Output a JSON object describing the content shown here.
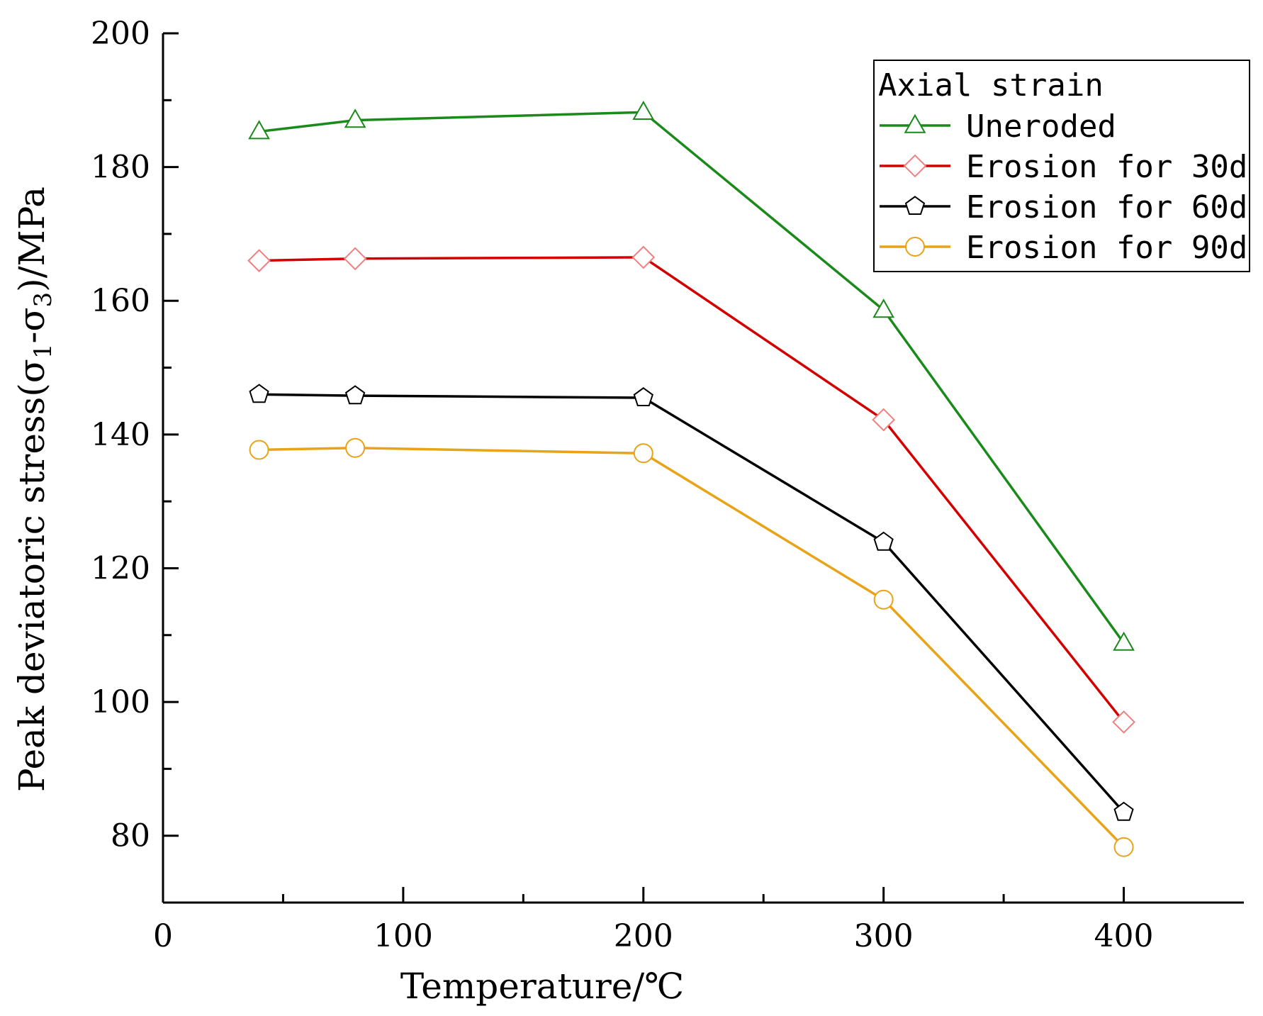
{
  "chart_data": {
    "type": "line",
    "title": "",
    "xlabel": "Temperature/℃",
    "ylabel_parts": {
      "prefix": "Peak deviatoric stress(σ",
      "sub1": "1",
      "middle": "-σ",
      "sub2": "3",
      "suffix": ")/MPa"
    },
    "xlim": [
      0,
      450
    ],
    "ylim": [
      70,
      200
    ],
    "xticks": [
      0,
      100,
      200,
      300,
      400
    ],
    "xticks_minor": [
      50,
      150,
      250,
      350
    ],
    "yticks": [
      80,
      100,
      120,
      140,
      160,
      180,
      200
    ],
    "yticks_minor": [
      90,
      110,
      130,
      150,
      170,
      190
    ],
    "x": [
      40,
      80,
      200,
      300,
      400
    ],
    "legend": {
      "title": "Axial strain",
      "position": "top-right"
    },
    "series": [
      {
        "name": "Uneroded",
        "color": "#1a8a1a",
        "marker": "triangle",
        "values": [
          185.3,
          187.0,
          188.2,
          158.6,
          108.8
        ]
      },
      {
        "name": "Erosion for 30d",
        "color": "#d40000",
        "marker": "diamond",
        "marker_color": "#f08080",
        "values": [
          166.0,
          166.3,
          166.5,
          142.2,
          97.0
        ]
      },
      {
        "name": "Erosion for 60d",
        "color": "#000000",
        "marker": "pentagon",
        "values": [
          146.0,
          145.8,
          145.5,
          123.9,
          83.5
        ]
      },
      {
        "name": "Erosion for 90d",
        "color": "#e8a317",
        "marker": "circle",
        "values": [
          137.7,
          138.0,
          137.2,
          115.3,
          78.3
        ]
      }
    ]
  }
}
